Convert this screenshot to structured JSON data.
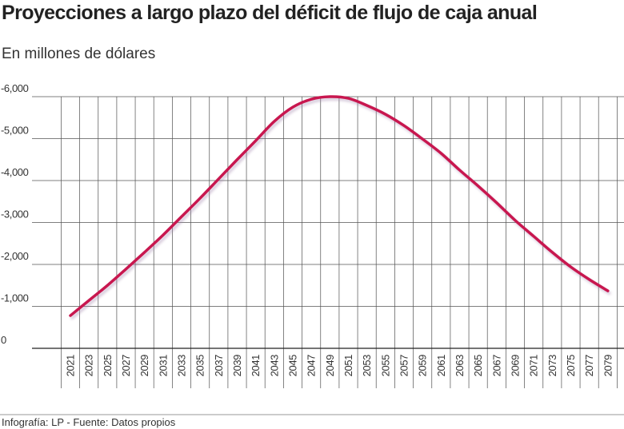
{
  "chart_data": {
    "type": "line",
    "title": "Proyecciones a largo plazo del déficit de flujo de caja anual",
    "subtitle": "En millones de dólares",
    "source": "Infografía: LP - Fuente: Datos propios",
    "categories": [
      "2021",
      "2023",
      "2025",
      "2027",
      "2029",
      "2031",
      "2033",
      "2035",
      "2037",
      "2039",
      "2041",
      "2043",
      "2045",
      "2047",
      "2049",
      "2051",
      "2053",
      "2055",
      "2057",
      "2059",
      "2061",
      "2063",
      "2065",
      "2067",
      "2069",
      "2071",
      "2073",
      "2075",
      "2077",
      "2079"
    ],
    "values": [
      -780,
      -1140,
      -1500,
      -1890,
      -2290,
      -2700,
      -3140,
      -3580,
      -4040,
      -4500,
      -4950,
      -5410,
      -5750,
      -5940,
      -6000,
      -5960,
      -5790,
      -5580,
      -5310,
      -4990,
      -4650,
      -4250,
      -3870,
      -3470,
      -3050,
      -2670,
      -2290,
      -1940,
      -1640,
      -1370
    ],
    "color": "#c8174f",
    "ylim": [
      0,
      -6000
    ],
    "yticks": [
      0,
      {
        "value": -1000,
        "label": "-1,000"
      },
      {
        "value": -2000,
        "label": "-2,000"
      },
      {
        "value": -3000,
        "label": "-3,000"
      },
      {
        "value": -4000,
        "label": "-4,000"
      },
      {
        "value": -5000,
        "label": "-5,000"
      },
      {
        "value": -6000,
        "label": "-6,000"
      }
    ],
    "grid": true
  }
}
